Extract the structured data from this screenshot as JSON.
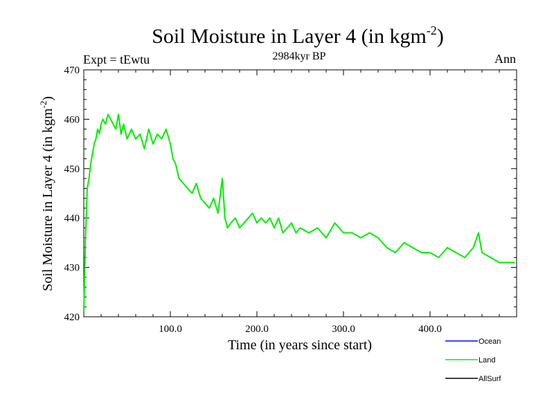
{
  "header": {
    "title_main": "Soil Moisture in Layer 4 (in kgm",
    "title_sup": "-2",
    "title_close": ")",
    "subtitle": "2984kyr BP",
    "expt_label": "Expt = tEwtu",
    "period": "Ann"
  },
  "chart_data": {
    "type": "line",
    "title": "Soil Moisture in Layer 4 (in kgm-2)",
    "subtitle": "2984kyr BP",
    "xlabel": "Time (in years since start)",
    "ylabel_main": "Soil Moisture in Layer 4 (in kgm",
    "ylabel_sup": "-2",
    "ylabel_close": ")",
    "xlim": [
      0,
      500
    ],
    "ylim": [
      420,
      470
    ],
    "x_ticks": [
      100,
      200,
      300,
      400
    ],
    "x_tick_labels": [
      "100.0",
      "200.0",
      "300.0",
      "400.0"
    ],
    "y_ticks": [
      420,
      430,
      440,
      450,
      460,
      470
    ],
    "y_tick_labels": [
      "420",
      "430",
      "440",
      "450",
      "460",
      "470"
    ],
    "legend": [
      {
        "name": "Ocean",
        "color": "#0000ff"
      },
      {
        "name": "Land",
        "color": "#00ee00"
      },
      {
        "name": "AllSurf",
        "color": "#000000"
      }
    ],
    "series": [
      {
        "name": "Land",
        "color": "#00ee00",
        "x": [
          0,
          2,
          4,
          6,
          8,
          10,
          12,
          14,
          16,
          18,
          20,
          22,
          25,
          28,
          31,
          34,
          37,
          40,
          43,
          46,
          50,
          55,
          60,
          65,
          70,
          75,
          80,
          85,
          90,
          95,
          100,
          103,
          106,
          110,
          115,
          120,
          125,
          130,
          135,
          140,
          145,
          150,
          155,
          160,
          163,
          166,
          170,
          175,
          180,
          185,
          190,
          195,
          200,
          205,
          210,
          215,
          220,
          225,
          230,
          235,
          240,
          245,
          250,
          260,
          270,
          280,
          290,
          300,
          310,
          320,
          330,
          340,
          350,
          360,
          370,
          380,
          390,
          400,
          410,
          420,
          430,
          440,
          450,
          456,
          460,
          470,
          480,
          490,
          498
        ],
        "values": [
          421,
          436,
          446,
          448,
          451,
          453,
          455,
          456,
          458,
          457,
          459,
          460,
          459,
          461,
          460,
          459,
          458,
          461,
          457,
          459,
          456,
          458,
          456,
          457,
          454,
          458,
          455,
          457,
          456,
          458,
          455,
          452,
          451,
          448,
          447,
          446,
          445,
          447,
          444,
          443,
          442,
          444,
          441,
          448,
          440,
          438,
          439,
          440,
          438,
          439,
          440,
          441,
          439,
          440,
          439,
          440,
          438,
          440,
          437,
          438,
          439,
          437,
          438,
          437,
          438,
          436,
          439,
          437,
          437,
          436,
          437,
          436,
          434,
          433,
          435,
          434,
          433,
          433,
          432,
          434,
          433,
          432,
          434,
          437,
          433,
          432,
          431,
          431,
          431
        ]
      }
    ]
  }
}
